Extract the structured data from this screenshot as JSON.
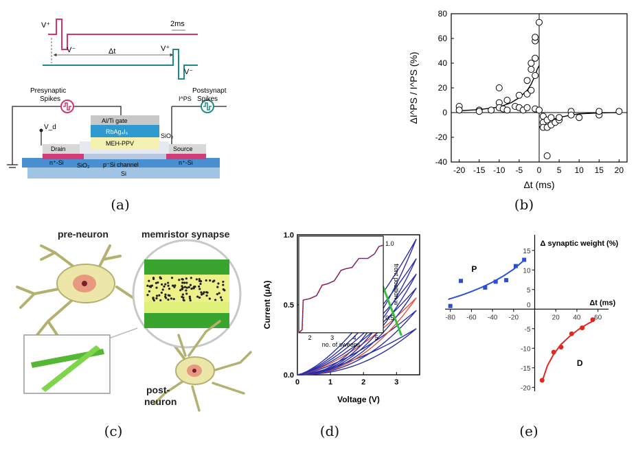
{
  "captions": {
    "a": "(a)",
    "b": "(b)",
    "c": "(c)",
    "d": "(d)",
    "e": "(e)"
  },
  "panel_a": {
    "vplus": "V⁺",
    "vminus": "V⁻",
    "dt": "Δt",
    "scale": "2ms",
    "pre_label_1": "Presynaptic",
    "pre_label_2": "Spikes",
    "post_label_1": "Postsynaptic",
    "post_label_2": "Spikes",
    "ips": "I^PS",
    "vd": "V_d",
    "layers": {
      "gate": "Al/Ti gate",
      "rb": "RbAg₄I₅",
      "meh": "MEH-PPV",
      "drain": "Drain",
      "source": "Source",
      "sio2_top": "SiO₂",
      "n_left": "n⁺-Si",
      "n_right": "n⁺-Si",
      "sio2_bot": "SiO₂",
      "channel": "p⁻Si channel",
      "si": "Si"
    }
  },
  "panel_c": {
    "pre": "pre-neuron",
    "mem": "memristor synapse",
    "post1": "post-",
    "post2": "neuron"
  },
  "chart_data": [
    {
      "id": "b",
      "type": "scatter",
      "xlabel": "Δt (ms)",
      "ylabel": "ΔI^PS / I^PS (%)",
      "xlim": [
        -22,
        22
      ],
      "ylim": [
        -40,
        80
      ],
      "xticks": [
        -20,
        -15,
        -10,
        -5,
        0,
        5,
        10,
        15,
        20
      ],
      "yticks": [
        -40,
        -20,
        0,
        20,
        40,
        60,
        80
      ],
      "points": [
        [
          -20,
          5
        ],
        [
          -20,
          2
        ],
        [
          -15,
          2
        ],
        [
          -15,
          1
        ],
        [
          -12,
          2
        ],
        [
          -10,
          20
        ],
        [
          -10,
          8
        ],
        [
          -10,
          4
        ],
        [
          -9,
          3
        ],
        [
          -8,
          10
        ],
        [
          -8,
          2
        ],
        [
          -6,
          5
        ],
        [
          -5,
          14
        ],
        [
          -5,
          4
        ],
        [
          -4,
          2
        ],
        [
          -3,
          15
        ],
        [
          -3,
          4
        ],
        [
          -3,
          26
        ],
        [
          -2,
          18
        ],
        [
          -2,
          35
        ],
        [
          -2,
          40
        ],
        [
          -1,
          30
        ],
        [
          -1,
          58
        ],
        [
          -1,
          61
        ],
        [
          -1,
          44
        ],
        [
          -1,
          3
        ],
        [
          0,
          73
        ],
        [
          0,
          2
        ],
        [
          1,
          -8
        ],
        [
          1,
          -12
        ],
        [
          1,
          -3
        ],
        [
          2,
          -35
        ],
        [
          2,
          -6
        ],
        [
          2,
          -12
        ],
        [
          3,
          -4
        ],
        [
          3,
          -10
        ],
        [
          4,
          -8
        ],
        [
          5,
          -6
        ],
        [
          5,
          -4
        ],
        [
          8,
          1
        ],
        [
          8,
          -2
        ],
        [
          10,
          -4
        ],
        [
          15,
          -2
        ],
        [
          15,
          1
        ],
        [
          20,
          1
        ]
      ],
      "fits": [
        {
          "name": "",
          "x": [
            -20,
            -15,
            -10,
            -7,
            -5,
            -3,
            -2,
            -1,
            -0.5,
            0
          ],
          "y": [
            1.5,
            2.4,
            4.5,
            8,
            12,
            18,
            23,
            30,
            35,
            38
          ]
        },
        {
          "name": "",
          "x": [
            0,
            1,
            2,
            3,
            5,
            8,
            10,
            15,
            20
          ],
          "y": [
            -12,
            -9,
            -7,
            -6,
            -4,
            -2,
            -1,
            -0.3,
            0
          ]
        }
      ]
    },
    {
      "id": "d",
      "type": "line",
      "xlabel": "Voltage (V)",
      "ylabel": "Current (μA)",
      "xlim": [
        0,
        3.7
      ],
      "ylim": [
        0,
        1.0
      ],
      "xticks": [
        0,
        1,
        2,
        3
      ],
      "yticks": [
        0.0,
        0.5,
        1.0
      ],
      "sweeps_peak": [
        0.33,
        0.46,
        0.55,
        0.62,
        0.72,
        0.83,
        0.97
      ],
      "inset": {
        "xlabel": "no. of sweeps",
        "ylabel": "front position w",
        "xlim": [
          1.5,
          5.3
        ],
        "ylim": [
          0.4,
          1.05
        ],
        "xticks": [
          2,
          3,
          4,
          5
        ],
        "yticks": [
          0.5,
          1.0
        ],
        "steps_x": [
          1.5,
          1.65,
          1.7,
          2.0,
          2.3,
          2.55,
          2.8,
          3.1,
          3.4,
          3.6,
          3.9,
          4.2,
          4.4,
          4.6,
          4.9,
          5.1,
          5.3
        ],
        "steps_y": [
          0.4,
          0.42,
          0.62,
          0.63,
          0.65,
          0.72,
          0.73,
          0.75,
          0.82,
          0.83,
          0.84,
          0.9,
          0.9,
          0.9,
          0.93,
          0.98,
          0.99
        ]
      }
    },
    {
      "id": "e",
      "type": "scatter",
      "xlabel": "Δt (ms)",
      "ylabel": "Δ synaptic weight (%)",
      "xlim": [
        -85,
        70
      ],
      "ylim": [
        -21,
        19
      ],
      "xticks": [
        -80,
        -60,
        -40,
        -20,
        20,
        40,
        60
      ],
      "yticks": [
        -20,
        -15,
        -10,
        -5,
        5,
        10,
        15
      ],
      "series": [
        {
          "name": "P",
          "color": "#2a4fd6",
          "x": [
            -80,
            -70,
            -47,
            -37,
            -27,
            -18,
            -10
          ],
          "y": [
            0.8,
            7.2,
            5.5,
            7.0,
            7.4,
            11,
            12.6
          ],
          "fit_x": [
            -82,
            -70,
            -60,
            -50,
            -40,
            -30,
            -20,
            -10
          ],
          "fit_y": [
            2.5,
            3.5,
            4.5,
            5.6,
            6.9,
            8.4,
            10.2,
            12.5
          ]
        },
        {
          "name": "D",
          "color": "#e0281e",
          "x": [
            7,
            18,
            25,
            35,
            45,
            55
          ],
          "y": [
            -18.2,
            -11,
            -9.7,
            -6.3,
            -4.8,
            -2.7
          ],
          "fit_x": [
            7,
            12,
            18,
            25,
            33,
            41,
            50,
            57
          ],
          "fit_y": [
            -18.5,
            -14.5,
            -11.5,
            -9.0,
            -7.0,
            -5.3,
            -3.8,
            -2.8
          ]
        }
      ]
    }
  ]
}
